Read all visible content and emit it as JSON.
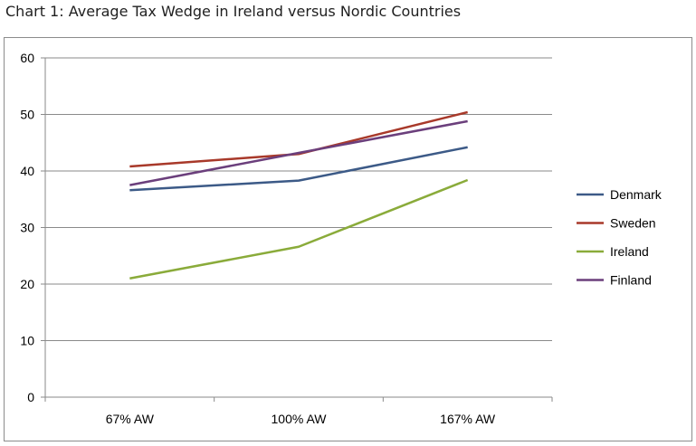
{
  "chart_data": {
    "type": "line",
    "title": "Chart 1: Average Tax Wedge in Ireland versus Nordic Countries",
    "categories": [
      "67% AW",
      "100% AW",
      "167% AW"
    ],
    "ylim": [
      0,
      60
    ],
    "yticks": [
      "0",
      "10",
      "20",
      "30",
      "40",
      "50",
      "60"
    ],
    "grid": true,
    "legend_position": "right",
    "series": [
      {
        "name": "Denmark",
        "color": "#3c5a87",
        "values": [
          36.6,
          38.3,
          44.2
        ]
      },
      {
        "name": "Sweden",
        "color": "#a8392a",
        "values": [
          40.8,
          43.0,
          50.4
        ]
      },
      {
        "name": "Ireland",
        "color": "#8aab3a",
        "values": [
          21.0,
          26.6,
          38.4
        ]
      },
      {
        "name": "Finland",
        "color": "#6b3f7c",
        "values": [
          37.5,
          43.2,
          48.8
        ]
      }
    ]
  }
}
